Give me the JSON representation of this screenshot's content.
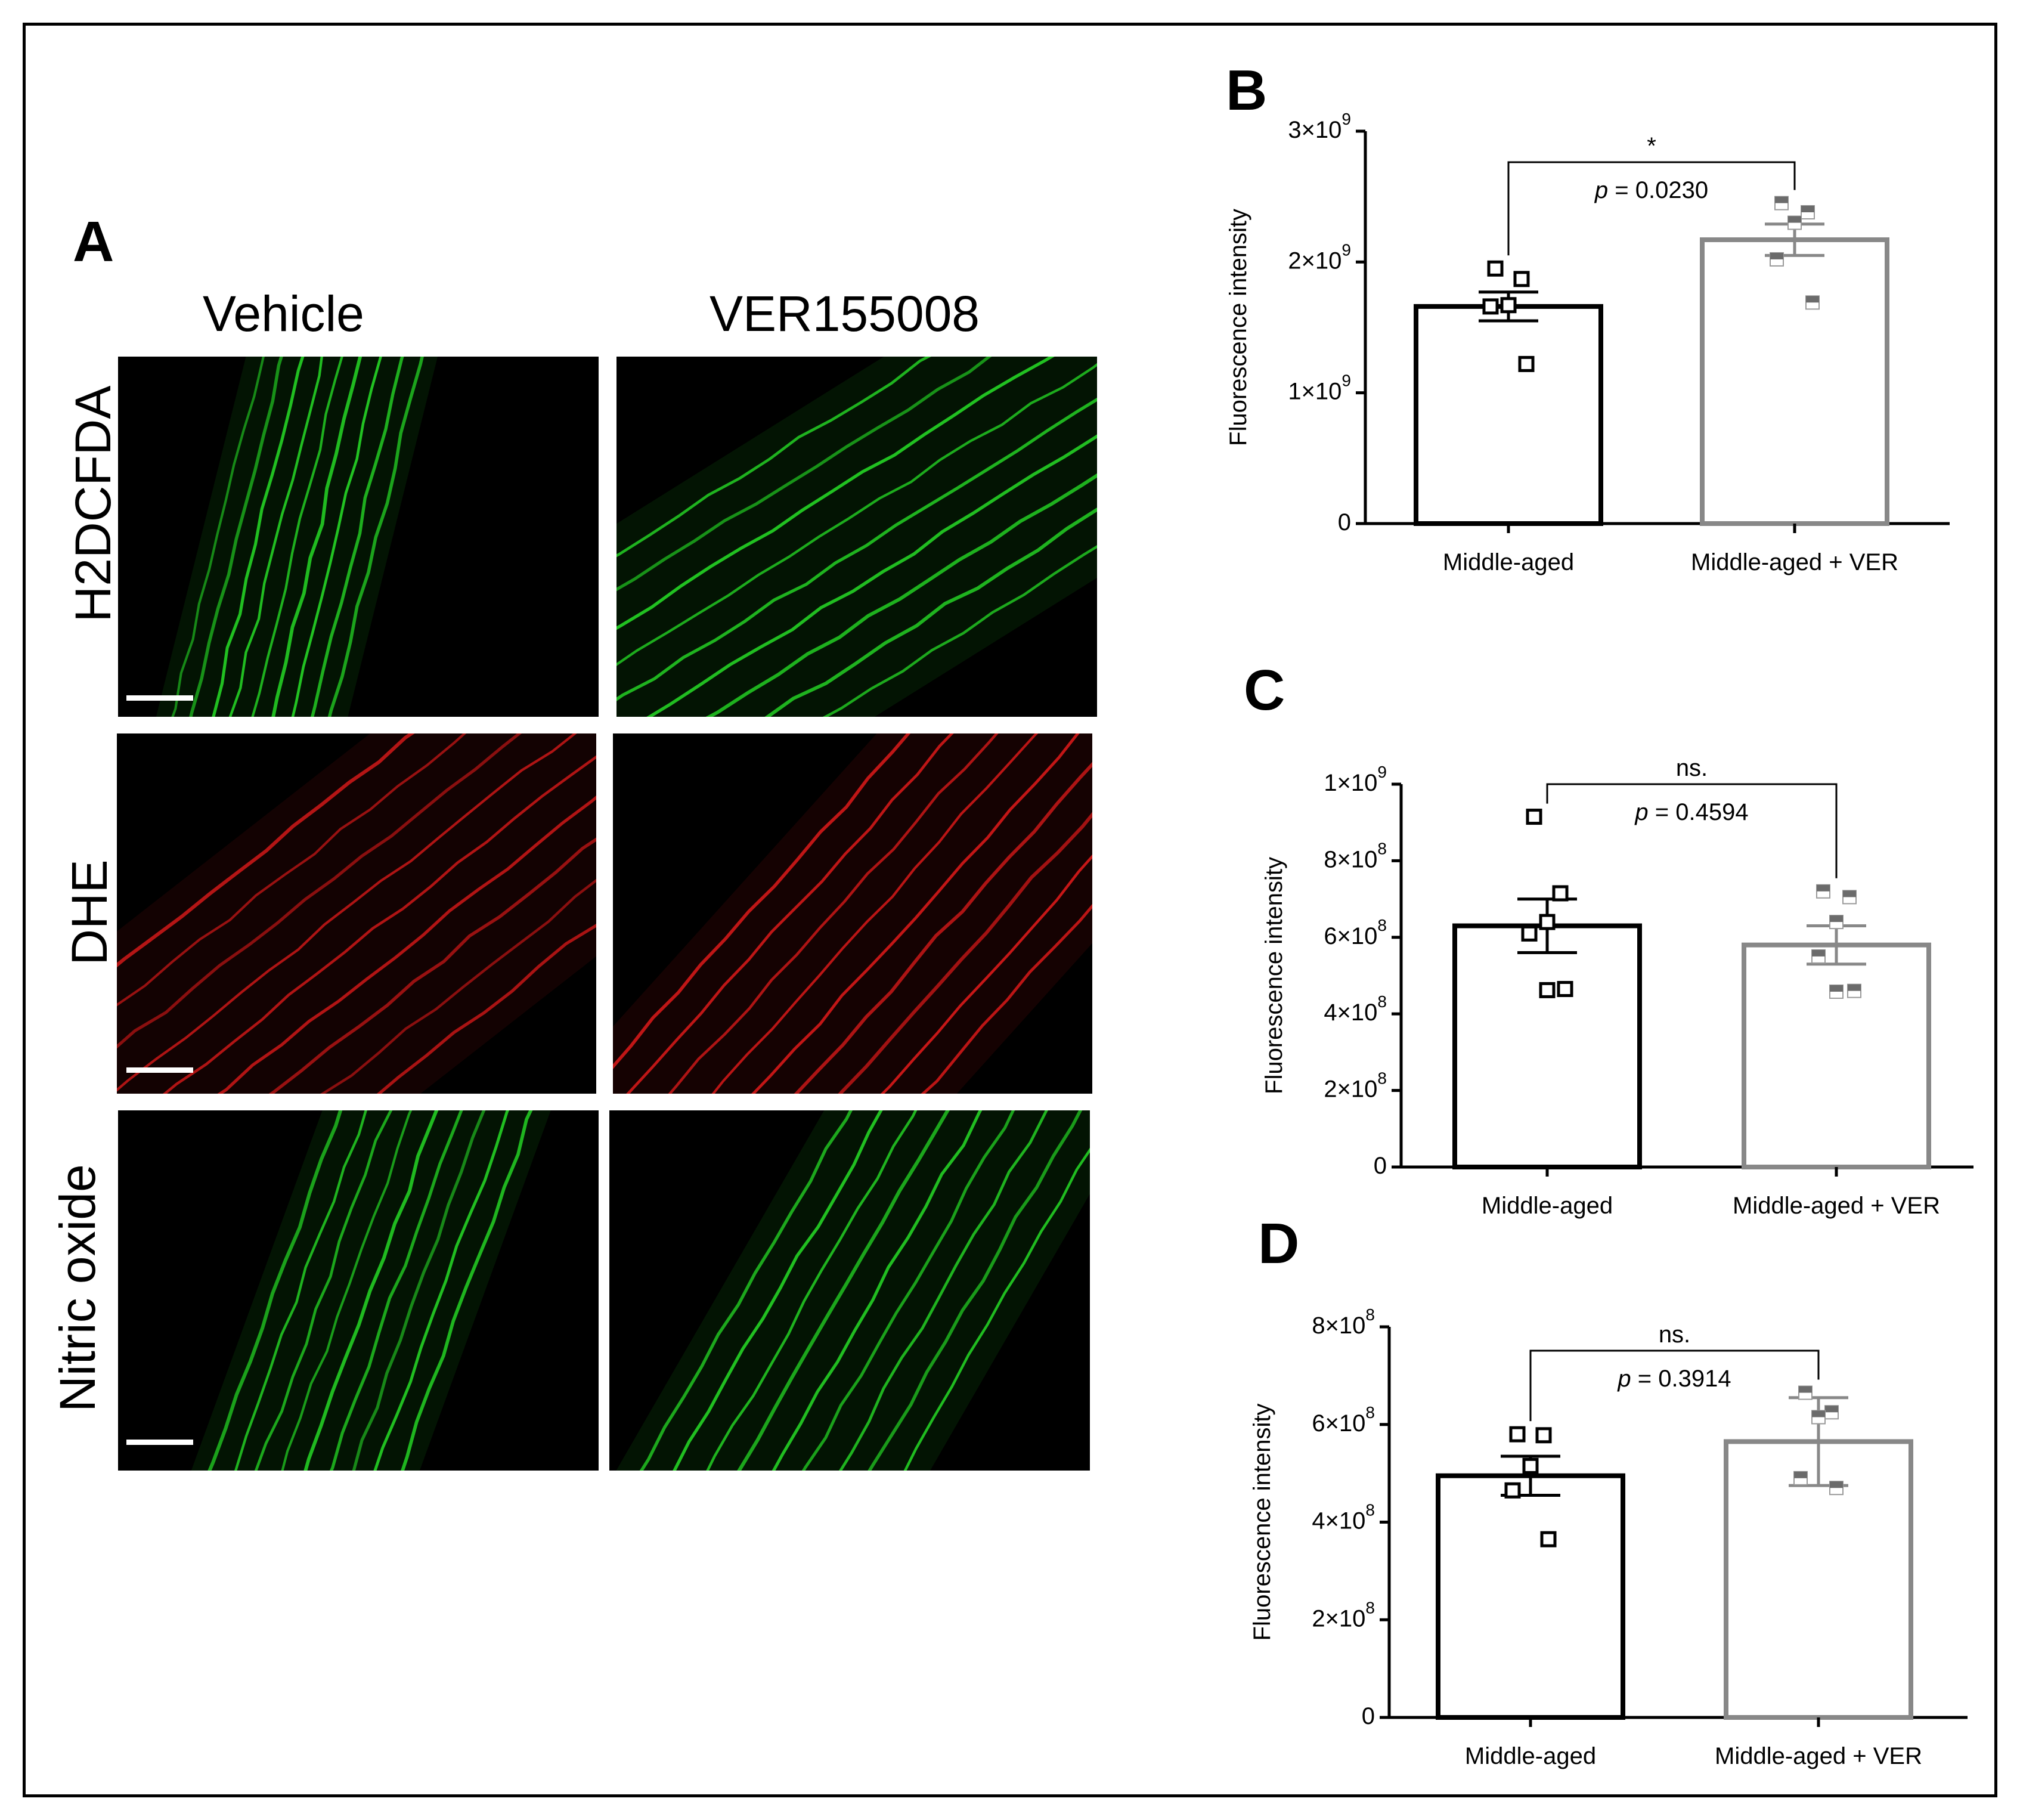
{
  "panel_a": {
    "letter": "A",
    "columns": [
      "Vehicle",
      "VER155008"
    ],
    "rows": [
      "H2DCFDA",
      "DHE",
      "Nitric oxide"
    ],
    "stain_colors": [
      "#22c422",
      "#d01818",
      "#22c422"
    ]
  },
  "chart_data": [
    {
      "panel": "B",
      "type": "bar",
      "categories": [
        "Middle-aged",
        "Middle-aged + VER"
      ],
      "ylabel": "Fluorescence intensity",
      "ylim": [
        0,
        3000000000
      ],
      "ytick_values": [
        0,
        1000000000,
        2000000000,
        3000000000
      ],
      "ytick_labels": [
        {
          "m": "0",
          "e": ""
        },
        {
          "m": "1×10",
          "e": "9"
        },
        {
          "m": "2×10",
          "e": "9"
        },
        {
          "m": "3×10",
          "e": "9"
        }
      ],
      "series": [
        {
          "category": "Middle-aged",
          "color": "#000000",
          "mean": 1660000000,
          "sem": 110000000,
          "points": [
            1950000000,
            1870000000,
            1670000000,
            1660000000,
            1220000000
          ],
          "marker": "open-square"
        },
        {
          "category": "Middle-aged + VER",
          "color": "#888888",
          "mean": 2170000000,
          "sem": 120000000,
          "points": [
            2450000000,
            2380000000,
            2300000000,
            2020000000,
            1690000000
          ],
          "marker": "half-filled-square"
        }
      ],
      "significance": {
        "symbol": "*",
        "p_label": "p",
        "p_text": " = 0.0230"
      }
    },
    {
      "panel": "C",
      "type": "bar",
      "categories": [
        "Middle-aged",
        "Middle-aged + VER"
      ],
      "ylabel": "Fluorescence intensity",
      "ylim": [
        0,
        1000000000
      ],
      "ytick_values": [
        0,
        200000000,
        400000000,
        600000000,
        800000000,
        1000000000
      ],
      "ytick_labels": [
        {
          "m": "0",
          "e": ""
        },
        {
          "m": "2×10",
          "e": "8"
        },
        {
          "m": "4×10",
          "e": "8"
        },
        {
          "m": "6×10",
          "e": "8"
        },
        {
          "m": "8×10",
          "e": "8"
        },
        {
          "m": "1×10",
          "e": "9"
        }
      ],
      "series": [
        {
          "category": "Middle-aged",
          "color": "#000000",
          "mean": 630000000,
          "sem": 70000000,
          "points": [
            915000000,
            715000000,
            640000000,
            610000000,
            465000000,
            462000000
          ],
          "marker": "open-square"
        },
        {
          "category": "Middle-aged + VER",
          "color": "#888888",
          "mean": 580000000,
          "sem": 50000000,
          "points": [
            720000000,
            705000000,
            640000000,
            550000000,
            460000000,
            458000000
          ],
          "marker": "half-filled-square"
        }
      ],
      "significance": {
        "symbol": "ns.",
        "p_label": "p",
        "p_text": " = 0.4594"
      }
    },
    {
      "panel": "D",
      "type": "bar",
      "categories": [
        "Middle-aged",
        "Middle-aged + VER"
      ],
      "ylabel": "Fluorescence intensity",
      "ylim": [
        0,
        800000000
      ],
      "ytick_values": [
        0,
        200000000,
        400000000,
        600000000,
        800000000
      ],
      "ytick_labels": [
        {
          "m": "0",
          "e": ""
        },
        {
          "m": "2×10",
          "e": "8"
        },
        {
          "m": "4×10",
          "e": "8"
        },
        {
          "m": "6×10",
          "e": "8"
        },
        {
          "m": "8×10",
          "e": "8"
        }
      ],
      "series": [
        {
          "category": "Middle-aged",
          "color": "#000000",
          "mean": 495000000,
          "sem": 40000000,
          "points": [
            580000000,
            578000000,
            515000000,
            465000000,
            365000000
          ],
          "marker": "open-square"
        },
        {
          "category": "Middle-aged + VER",
          "color": "#888888",
          "mean": 565000000,
          "sem": 90000000,
          "points": [
            665000000,
            625000000,
            615000000,
            490000000,
            470000000
          ],
          "marker": "half-filled-square"
        }
      ],
      "significance": {
        "symbol": "ns.",
        "p_label": "p",
        "p_text": " = 0.3914"
      }
    }
  ]
}
